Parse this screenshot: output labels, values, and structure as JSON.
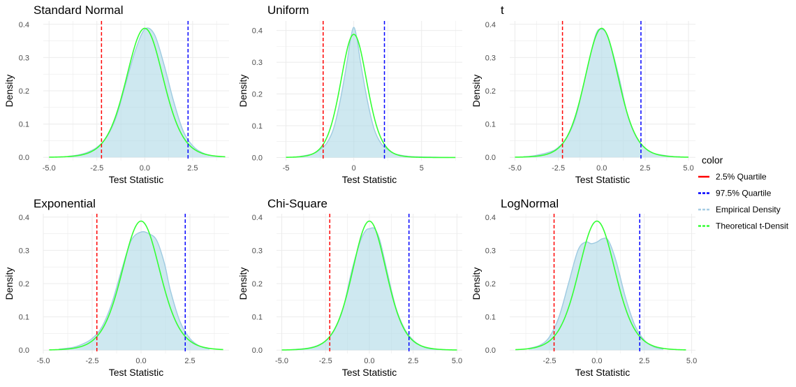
{
  "legend": {
    "title": "color",
    "placement": "right",
    "entries": [
      {
        "label": "2.5% Quartile",
        "color": "#ff0000",
        "style": "solid"
      },
      {
        "label": "97.5% Quartile",
        "color": "#0000ff",
        "style": "dashed"
      },
      {
        "label": "Empirical Density",
        "color": "#a6cde3",
        "style": "dashed"
      },
      {
        "label": "Theoretical t-Densit",
        "color": "#33ff33",
        "style": "dashed"
      }
    ]
  },
  "colors": {
    "empirical_fill": "#add8e6",
    "empirical_line": "#9ecae1",
    "theoretical": "#33ff33",
    "q025": "#ff0000",
    "q975": "#0000ff",
    "grid": "#ebebeb"
  },
  "chart_data": [
    {
      "type": "area",
      "title": "Standard Normal",
      "xlabel": "Test Statistic",
      "ylabel": "Density",
      "xlim": [
        -5.3,
        4.4
      ],
      "ylim": [
        -0.01,
        0.41
      ],
      "xticks": [
        -5.0,
        -2.5,
        0.0,
        2.5
      ],
      "xtick_labels": [
        "-5.0",
        "-2.5",
        "0.0",
        "2.5"
      ],
      "yticks": [
        0.0,
        0.1,
        0.2,
        0.3,
        0.4
      ],
      "ytick_labels": [
        "0.0",
        "0.1",
        "0.2",
        "0.3",
        "0.4"
      ],
      "grid": true,
      "quantiles": {
        "q025": -2.26,
        "q975": 2.26
      },
      "theoretical_df": 9,
      "theoretical_range": [
        -5.0,
        4.2
      ],
      "series": [
        {
          "name": "Empirical Density",
          "x": [
            -4.0,
            -3.5,
            -3.0,
            -2.5,
            -2.0,
            -1.5,
            -1.0,
            -0.5,
            0.0,
            0.5,
            1.0,
            1.5,
            2.0,
            2.5,
            3.0,
            3.5,
            4.0
          ],
          "y": [
            0.003,
            0.007,
            0.015,
            0.03,
            0.06,
            0.12,
            0.22,
            0.32,
            0.385,
            0.37,
            0.28,
            0.17,
            0.08,
            0.035,
            0.014,
            0.005,
            0.002
          ]
        }
      ]
    },
    {
      "type": "area",
      "title": "Uniform",
      "xlabel": "Test Statistic",
      "ylabel": "Density",
      "xlim": [
        -5.7,
        8.0
      ],
      "ylim": [
        -0.01,
        0.43
      ],
      "xticks": [
        -5,
        0,
        5
      ],
      "xtick_labels": [
        "-5",
        "0",
        "5"
      ],
      "yticks": [
        0.0,
        0.1,
        0.2,
        0.3,
        0.4
      ],
      "ytick_labels": [
        "0.0",
        "0.1",
        "0.2",
        "0.3",
        "0.4"
      ],
      "grid": true,
      "quantiles": {
        "q025": -2.26,
        "q975": 2.26
      },
      "theoretical_df": 9,
      "theoretical_range": [
        -5.0,
        7.5
      ],
      "series": [
        {
          "name": "Empirical Density",
          "x": [
            -4.5,
            -4.0,
            -3.0,
            -2.5,
            -2.0,
            -1.5,
            -1.0,
            -0.5,
            -0.25,
            0.0,
            0.25,
            0.5,
            1.0,
            1.5,
            2.0,
            2.5,
            3.0,
            4.0,
            5.0,
            6.0,
            7.0
          ],
          "y": [
            0.001,
            0.003,
            0.012,
            0.025,
            0.045,
            0.09,
            0.18,
            0.3,
            0.37,
            0.41,
            0.37,
            0.3,
            0.18,
            0.09,
            0.045,
            0.025,
            0.012,
            0.004,
            0.002,
            0.001,
            0.0
          ]
        }
      ]
    },
    {
      "type": "area",
      "title": "t",
      "xlabel": "Test Statistic",
      "ylabel": "Density",
      "xlim": [
        -5.3,
        5.4
      ],
      "ylim": [
        -0.01,
        0.41
      ],
      "xticks": [
        -5.0,
        -2.5,
        0.0,
        2.5,
        5.0
      ],
      "xtick_labels": [
        "-5.0",
        "-2.5",
        "0.0",
        "2.5",
        "5.0"
      ],
      "yticks": [
        0.0,
        0.1,
        0.2,
        0.3,
        0.4
      ],
      "ytick_labels": [
        "0.0",
        "0.1",
        "0.2",
        "0.3",
        "0.4"
      ],
      "grid": true,
      "quantiles": {
        "q025": -2.26,
        "q975": 2.26
      },
      "theoretical_df": 9,
      "theoretical_range": [
        -5.0,
        5.0
      ],
      "series": [
        {
          "name": "Empirical Density",
          "x": [
            -4.5,
            -4.0,
            -3.0,
            -2.5,
            -2.0,
            -1.5,
            -1.0,
            -0.5,
            -0.25,
            0.0,
            0.25,
            0.5,
            1.0,
            1.5,
            2.0,
            2.5,
            3.0,
            4.0,
            4.5
          ],
          "y": [
            0.002,
            0.004,
            0.016,
            0.03,
            0.06,
            0.12,
            0.23,
            0.34,
            0.38,
            0.385,
            0.375,
            0.34,
            0.24,
            0.125,
            0.06,
            0.028,
            0.012,
            0.003,
            0.002
          ]
        }
      ]
    },
    {
      "type": "area",
      "title": "Exponential",
      "xlabel": "Test Statistic",
      "ylabel": "Density",
      "xlim": [
        -5.0,
        4.5
      ],
      "ylim": [
        -0.01,
        0.41
      ],
      "xticks": [
        -5.0,
        -2.5,
        0.0,
        2.5
      ],
      "xtick_labels": [
        "-5.0",
        "-2.5",
        "0.0",
        "2.5"
      ],
      "yticks": [
        0.0,
        0.1,
        0.2,
        0.3,
        0.4
      ],
      "ytick_labels": [
        "0.0",
        "0.1",
        "0.2",
        "0.3",
        "0.4"
      ],
      "grid": true,
      "quantiles": {
        "q025": -2.26,
        "q975": 2.26
      },
      "theoretical_df": 9,
      "theoretical_range": [
        -4.7,
        4.2
      ],
      "series": [
        {
          "name": "Empirical Density",
          "x": [
            -4.2,
            -3.5,
            -3.0,
            -2.5,
            -2.0,
            -1.5,
            -1.0,
            -0.5,
            0.0,
            0.4,
            0.8,
            1.2,
            1.5,
            2.0,
            2.5,
            3.0,
            3.5
          ],
          "y": [
            0.003,
            0.008,
            0.018,
            0.035,
            0.07,
            0.14,
            0.24,
            0.33,
            0.355,
            0.35,
            0.33,
            0.26,
            0.18,
            0.085,
            0.035,
            0.012,
            0.004
          ]
        }
      ]
    },
    {
      "type": "area",
      "title": "Chi-Square",
      "xlabel": "Test Statistic",
      "ylabel": "Density",
      "xlim": [
        -5.3,
        5.3
      ],
      "ylim": [
        -0.01,
        0.41
      ],
      "xticks": [
        -5.0,
        -2.5,
        0.0,
        2.5,
        5.0
      ],
      "xtick_labels": [
        "-5.0",
        "-2.5",
        "0.0",
        "2.5",
        "5.0"
      ],
      "yticks": [
        0.0,
        0.1,
        0.2,
        0.3,
        0.4
      ],
      "ytick_labels": [
        "0.0",
        "0.1",
        "0.2",
        "0.3",
        "0.4"
      ],
      "grid": true,
      "quantiles": {
        "q025": -2.26,
        "q975": 2.26
      },
      "theoretical_df": 9,
      "theoretical_range": [
        -5.0,
        5.0
      ],
      "series": [
        {
          "name": "Empirical Density",
          "x": [
            -4.5,
            -3.5,
            -3.0,
            -2.5,
            -2.0,
            -1.5,
            -1.0,
            -0.5,
            -0.2,
            0.0,
            0.3,
            0.6,
            1.0,
            1.5,
            2.0,
            2.5,
            3.0,
            3.5,
            4.5
          ],
          "y": [
            0.001,
            0.006,
            0.013,
            0.028,
            0.06,
            0.125,
            0.24,
            0.33,
            0.36,
            0.365,
            0.365,
            0.33,
            0.24,
            0.13,
            0.065,
            0.03,
            0.012,
            0.004,
            0.001
          ]
        }
      ]
    },
    {
      "type": "area",
      "title": "LogNormal",
      "xlabel": "Test Statistic",
      "ylabel": "Density",
      "xlim": [
        -4.6,
        5.2
      ],
      "ylim": [
        -0.01,
        0.41
      ],
      "xticks": [
        -2.5,
        0.0,
        2.5,
        5.0
      ],
      "xtick_labels": [
        "-2.5",
        "0.0",
        "2.5",
        "5.0"
      ],
      "yticks": [
        0.0,
        0.1,
        0.2,
        0.3,
        0.4
      ],
      "ytick_labels": [
        "0.0",
        "0.1",
        "0.2",
        "0.3",
        "0.4"
      ],
      "grid": true,
      "quantiles": {
        "q025": -2.26,
        "q975": 2.26
      },
      "theoretical_df": 9,
      "theoretical_range": [
        -4.3,
        4.7
      ],
      "series": [
        {
          "name": "Empirical Density",
          "x": [
            -3.6,
            -3.0,
            -2.5,
            -2.0,
            -1.5,
            -1.0,
            -0.6,
            -0.3,
            0.0,
            0.3,
            0.6,
            1.0,
            1.5,
            2.0,
            2.5,
            3.0,
            3.5
          ],
          "y": [
            0.005,
            0.015,
            0.04,
            0.1,
            0.2,
            0.3,
            0.325,
            0.32,
            0.325,
            0.335,
            0.33,
            0.27,
            0.16,
            0.075,
            0.03,
            0.01,
            0.003
          ]
        }
      ]
    }
  ]
}
